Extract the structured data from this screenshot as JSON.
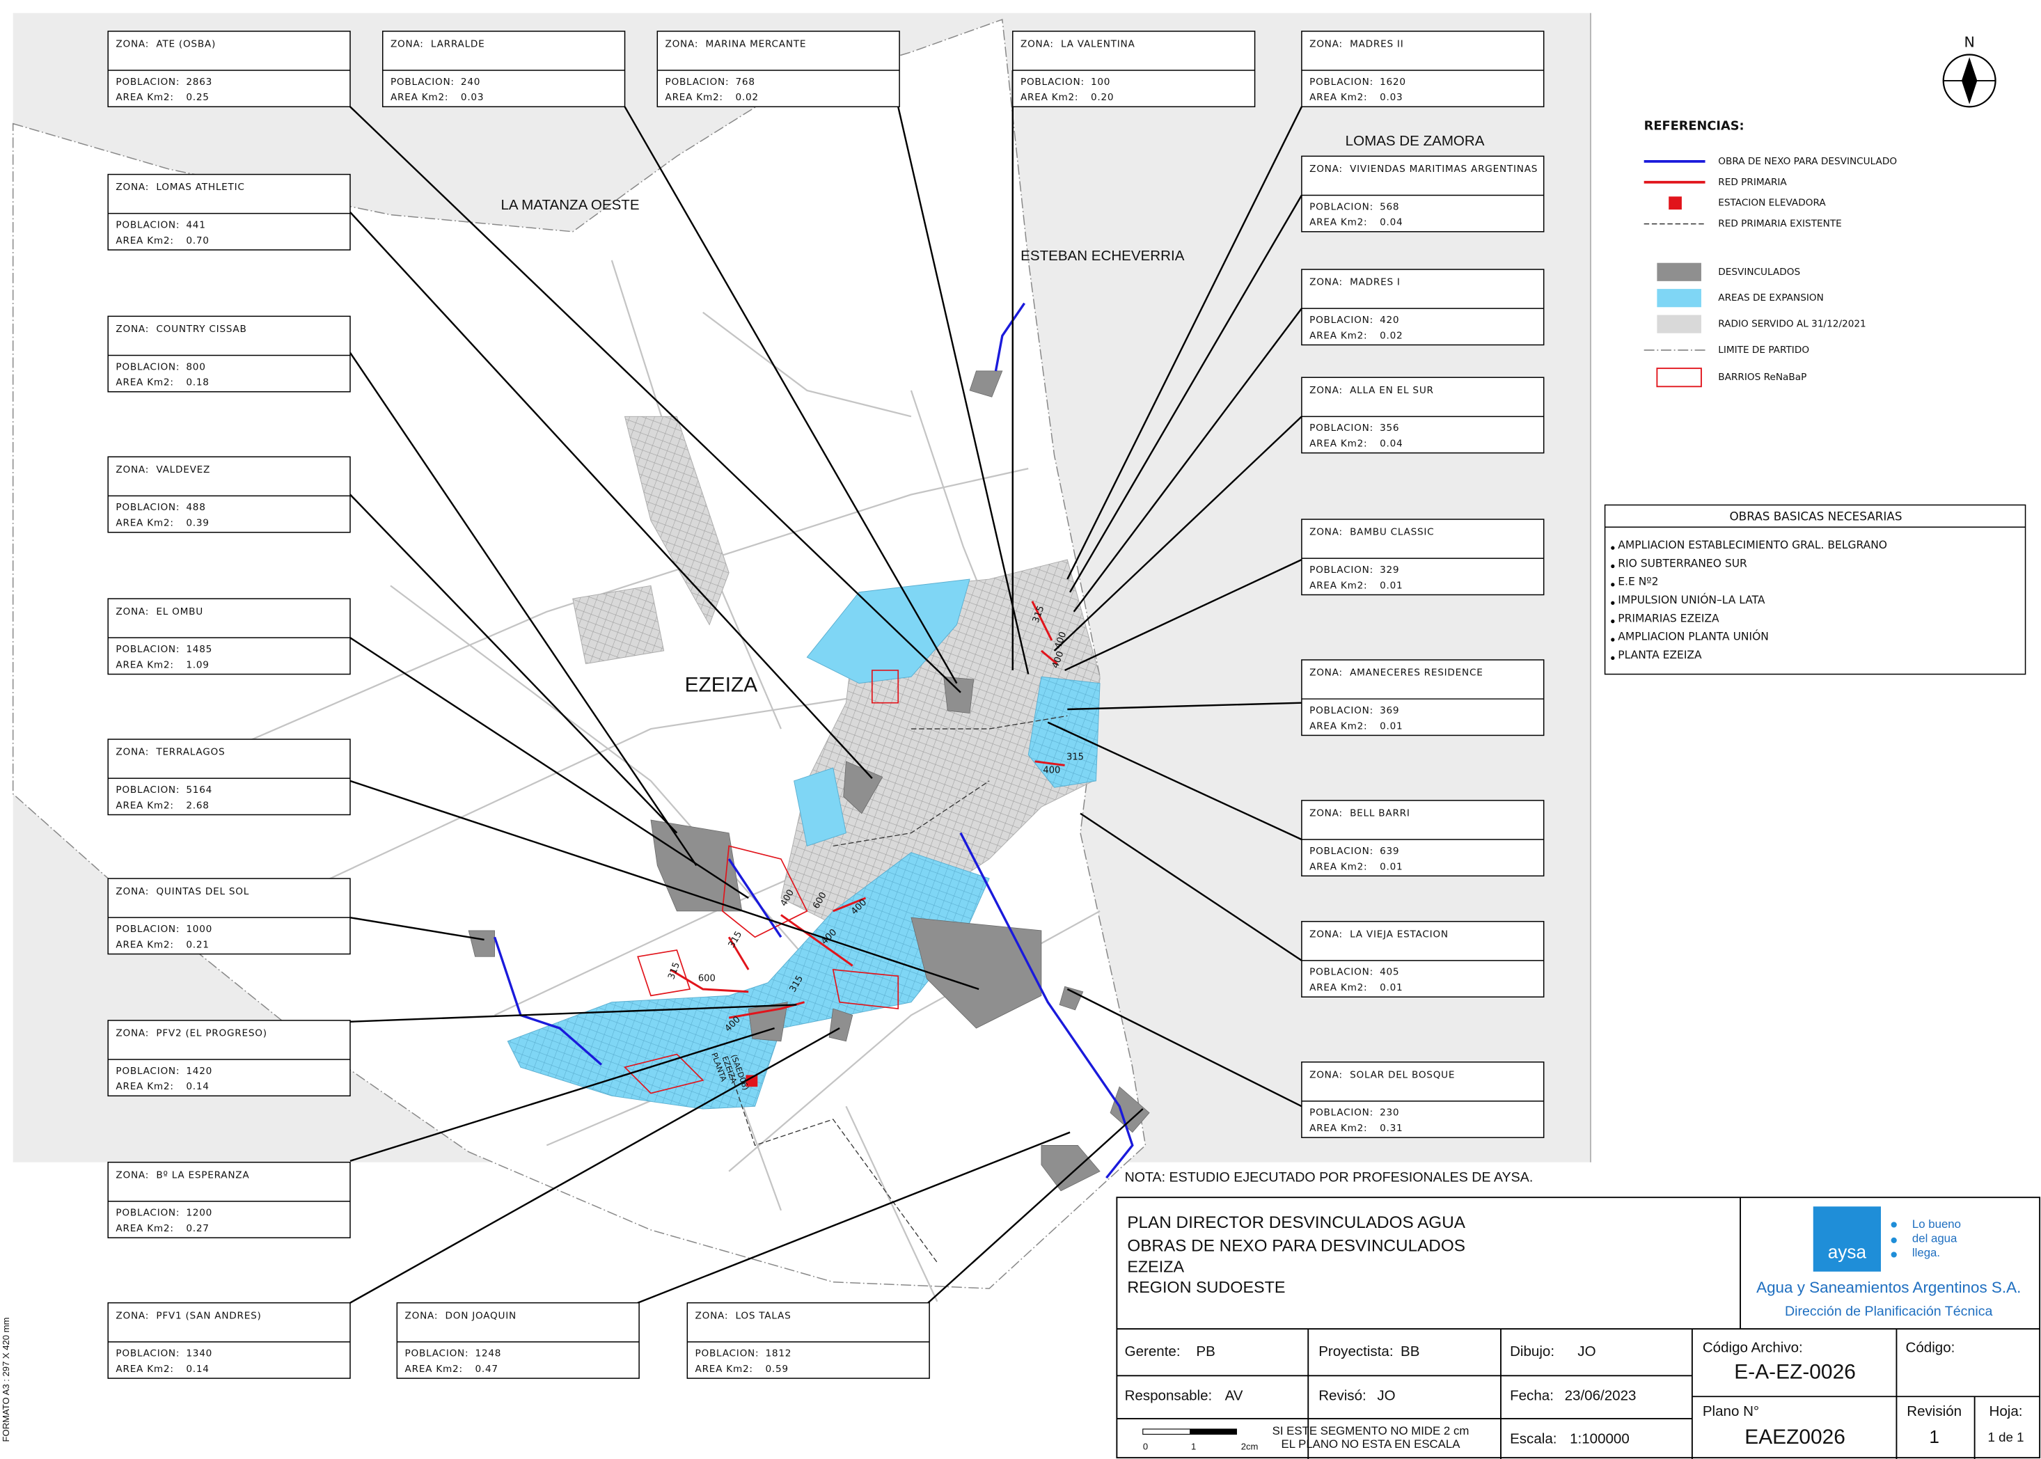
{
  "format_note": "FORMATO A3 : 297 X 420 mm",
  "north": "N",
  "places": [
    "LA MATANZA OESTE",
    "ESTEBAN ECHEVERRIA",
    "LOMAS DE ZAMORA",
    "EZEIZA"
  ],
  "map_labels": [
    "315",
    "400",
    "400",
    "400",
    "315",
    "400",
    "600",
    "400",
    "400",
    "315",
    "315",
    "600",
    "315",
    "400"
  ],
  "plant_label": [
    "PLANTA",
    "EZEIZA",
    "(SAED06)"
  ],
  "zone_labels": {
    "zona": "ZONA:",
    "poblacion": "POBLACION:",
    "area": "AREA Km2:"
  },
  "zones": [
    {
      "name": "ATE (OSBA)",
      "poblacion": "2863",
      "area": "0.25"
    },
    {
      "name": "LARRALDE",
      "poblacion": "240",
      "area": "0.03"
    },
    {
      "name": "MARINA MERCANTE",
      "poblacion": "768",
      "area": "0.02"
    },
    {
      "name": "LA VALENTINA",
      "poblacion": "100",
      "area": "0.20"
    },
    {
      "name": "MADRES II",
      "poblacion": "1620",
      "area": "0.03"
    },
    {
      "name": "LOMAS ATHLETIC",
      "poblacion": "441",
      "area": "0.70"
    },
    {
      "name": "VIVIENDAS MARITIMAS ARGENTINAS",
      "poblacion": "568",
      "area": "0.04"
    },
    {
      "name": "COUNTRY CISSAB",
      "poblacion": "800",
      "area": "0.18"
    },
    {
      "name": "MADRES I",
      "poblacion": "420",
      "area": "0.02"
    },
    {
      "name": "ALLA EN EL SUR",
      "poblacion": "356",
      "area": "0.04"
    },
    {
      "name": "VALDEVEZ",
      "poblacion": "488",
      "area": "0.39"
    },
    {
      "name": "BAMBU CLASSIC",
      "poblacion": "329",
      "area": "0.01"
    },
    {
      "name": "EL OMBU",
      "poblacion": "1485",
      "area": "1.09"
    },
    {
      "name": "AMANECERES RESIDENCE",
      "poblacion": "369",
      "area": "0.01"
    },
    {
      "name": "TERRALAGOS",
      "poblacion": "5164",
      "area": "2.68"
    },
    {
      "name": "BELL BARRI",
      "poblacion": "639",
      "area": "0.01"
    },
    {
      "name": "QUINTAS DEL SOL",
      "poblacion": "1000",
      "area": "0.21"
    },
    {
      "name": "LA VIEJA ESTACION",
      "poblacion": "405",
      "area": "0.01"
    },
    {
      "name": "PFV2 (EL PROGRESO)",
      "poblacion": "1420",
      "area": "0.14"
    },
    {
      "name": "SOLAR DEL BOSQUE",
      "poblacion": "230",
      "area": "0.31"
    },
    {
      "name": "Bº LA ESPERANZA",
      "poblacion": "1200",
      "area": "0.27"
    },
    {
      "name": "PFV1 (SAN ANDRES)",
      "poblacion": "1340",
      "area": "0.14"
    },
    {
      "name": "DON JOAQUIN",
      "poblacion": "1248",
      "area": "0.47"
    },
    {
      "name": "LOS TALAS",
      "poblacion": "1812",
      "area": "0.59"
    }
  ],
  "legend": {
    "title": "REFERENCIAS:",
    "items": [
      "OBRA DE NEXO PARA DESVINCULADO",
      "RED PRIMARIA",
      "ESTACION ELEVADORA",
      "RED PRIMARIA EXISTENTE",
      "DESVINCULADOS",
      "AREAS DE EXPANSION",
      "RADIO SERVIDO AL 31/12/2021",
      "LIMITE DE PARTIDO",
      "BARRIOS ReNaBaP"
    ]
  },
  "obras": {
    "title": "OBRAS BASICAS NECESARIAS",
    "items": [
      "AMPLIACION ESTABLECIMIENTO GRAL. BELGRANO",
      "RIO SUBTERRANEO SUR",
      "E.E Nº2",
      "IMPULSION UNIÓN–LA LATA",
      "PRIMARIAS EZEIZA",
      "AMPLIACION PLANTA UNIÓN",
      "PLANTA EZEIZA"
    ]
  },
  "note": "NOTA: ESTUDIO EJECUTADO POR PROFESIONALES DE AYSA.",
  "title_block": {
    "lines": [
      "PLAN DIRECTOR DESVINCULADOS AGUA",
      "OBRAS DE NEXO PARA DESVINCULADOS",
      "EZEIZA",
      "REGION SUDOESTE"
    ],
    "logo": {
      "mark": "aysa",
      "slogan": [
        "Lo bueno",
        "del agua",
        "llega."
      ],
      "company": "Agua y Saneamientos Argentinos S.A.",
      "department": "Dirección de Planificación Técnica"
    },
    "cells": [
      {
        "label": "Gerente:",
        "value": "PB"
      },
      {
        "label": "Proyectista:",
        "value": "BB"
      },
      {
        "label": "Dibujo:",
        "value": "JO"
      },
      {
        "label": "Responsable:",
        "value": "AV"
      },
      {
        "label": "Revisó:",
        "value": "JO"
      },
      {
        "label": "Fecha:",
        "value": "23/06/2023"
      },
      {
        "label": "Escala:",
        "value": "1:100000"
      }
    ],
    "codigo_archivo": {
      "label": "Código Archivo:",
      "value": "E-A-EZ-0026"
    },
    "codigo": {
      "label": "Código:"
    },
    "plano": {
      "label": "Plano N°",
      "value": "EAEZ0026"
    },
    "revision": {
      "label": "Revisión",
      "value": "1"
    },
    "hoja": {
      "label": "Hoja:",
      "value": "1 de 1"
    },
    "scale_bar": {
      "ticks": [
        "0",
        "1",
        "2cm"
      ],
      "text": [
        "SI ESTE SEGMENTO NO MIDE 2 cm",
        "EL PLANO NO ESTA EN ESCALA"
      ]
    }
  }
}
